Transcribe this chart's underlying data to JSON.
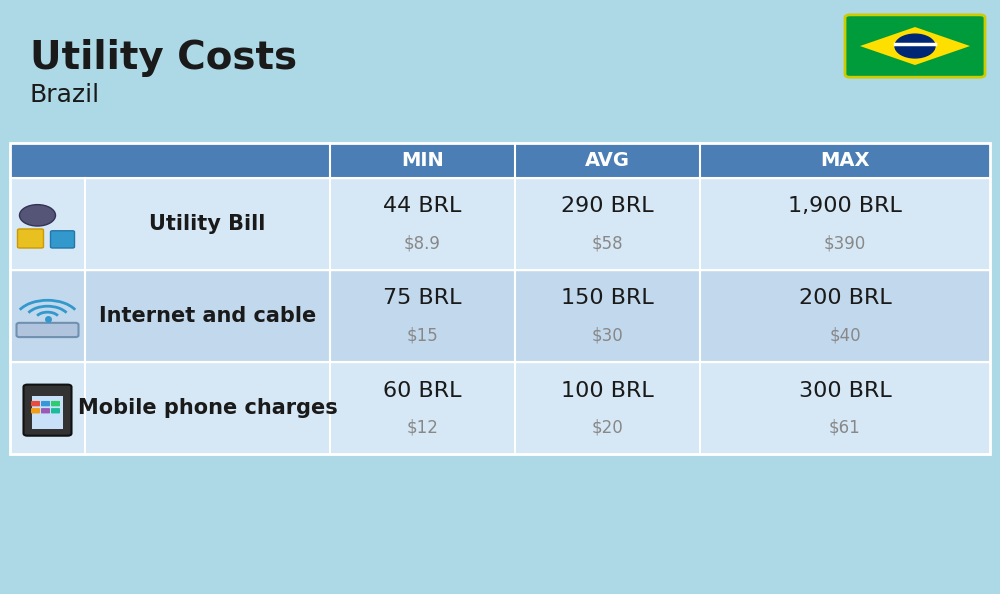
{
  "title": "Utility Costs",
  "subtitle": "Brazil",
  "background_color": "#ADD8E6",
  "header_bg_color": "#4a7eb5",
  "header_text_color": "#ffffff",
  "row_bg_color_1": "#d6e8f5",
  "row_bg_color_2": "#c2d9ed",
  "col_header_labels": [
    "MIN",
    "AVG",
    "MAX"
  ],
  "rows": [
    {
      "label": "Utility Bill",
      "min_brl": "44 BRL",
      "min_usd": "$8.9",
      "avg_brl": "290 BRL",
      "avg_usd": "$58",
      "max_brl": "1,900 BRL",
      "max_usd": "$390",
      "icon": "utility"
    },
    {
      "label": "Internet and cable",
      "min_brl": "75 BRL",
      "min_usd": "$15",
      "avg_brl": "150 BRL",
      "avg_usd": "$30",
      "max_brl": "200 BRL",
      "max_usd": "$40",
      "icon": "internet"
    },
    {
      "label": "Mobile phone charges",
      "min_brl": "60 BRL",
      "min_usd": "$12",
      "avg_brl": "100 BRL",
      "avg_usd": "$20",
      "max_brl": "300 BRL",
      "max_usd": "$61",
      "icon": "mobile"
    }
  ],
  "title_fontsize": 28,
  "subtitle_fontsize": 18,
  "header_fontsize": 14,
  "label_fontsize": 15,
  "value_fontsize": 16,
  "usd_fontsize": 12
}
